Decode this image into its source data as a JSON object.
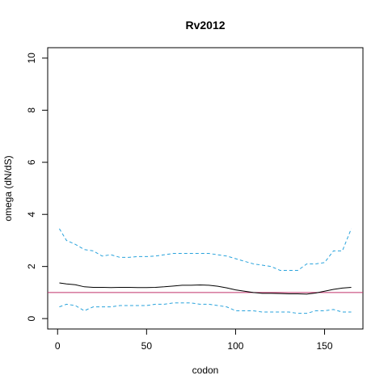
{
  "chart_data": {
    "type": "line",
    "title": "Rv2012",
    "x_label": "codon",
    "y_label": "omega (dN/dS)",
    "x": [
      1,
      5,
      10,
      15,
      20,
      25,
      30,
      35,
      40,
      45,
      50,
      55,
      60,
      65,
      70,
      75,
      80,
      85,
      90,
      95,
      100,
      105,
      110,
      115,
      120,
      125,
      130,
      135,
      140,
      145,
      150,
      155,
      160,
      165
    ],
    "series": [
      {
        "color": "#000000",
        "dash": false,
        "values": [
          1.37,
          1.33,
          1.3,
          1.22,
          1.2,
          1.2,
          1.19,
          1.2,
          1.2,
          1.19,
          1.19,
          1.2,
          1.22,
          1.25,
          1.28,
          1.28,
          1.29,
          1.28,
          1.24,
          1.18,
          1.1,
          1.05,
          1.0,
          0.97,
          0.97,
          0.96,
          0.95,
          0.95,
          0.94,
          0.98,
          1.05,
          1.12,
          1.17,
          1.2
        ]
      },
      {
        "color": "#29a3dc",
        "dash": true,
        "values": [
          3.45,
          3.0,
          2.85,
          2.65,
          2.6,
          2.4,
          2.45,
          2.35,
          2.35,
          2.38,
          2.38,
          2.4,
          2.45,
          2.5,
          2.5,
          2.5,
          2.5,
          2.5,
          2.45,
          2.4,
          2.3,
          2.2,
          2.1,
          2.05,
          2.0,
          1.85,
          1.85,
          1.85,
          2.1,
          2.1,
          2.15,
          2.6,
          2.6,
          3.45
        ]
      },
      {
        "color": "#29a3dc",
        "dash": true,
        "values": [
          0.45,
          0.55,
          0.5,
          0.3,
          0.45,
          0.45,
          0.45,
          0.5,
          0.5,
          0.5,
          0.5,
          0.55,
          0.55,
          0.6,
          0.6,
          0.6,
          0.55,
          0.55,
          0.5,
          0.45,
          0.3,
          0.3,
          0.3,
          0.25,
          0.25,
          0.25,
          0.25,
          0.2,
          0.2,
          0.3,
          0.3,
          0.35,
          0.25,
          0.25
        ]
      }
    ],
    "hline": {
      "value": 1,
      "color": "#c0306a"
    },
    "xlim": [
      -5.56,
      171.56
    ],
    "xticks": [
      0,
      50,
      100,
      150
    ],
    "ylim": [
      -0.4,
      10.4
    ],
    "yticks": [
      0,
      2,
      4,
      6,
      8,
      10
    ],
    "grid": false
  }
}
